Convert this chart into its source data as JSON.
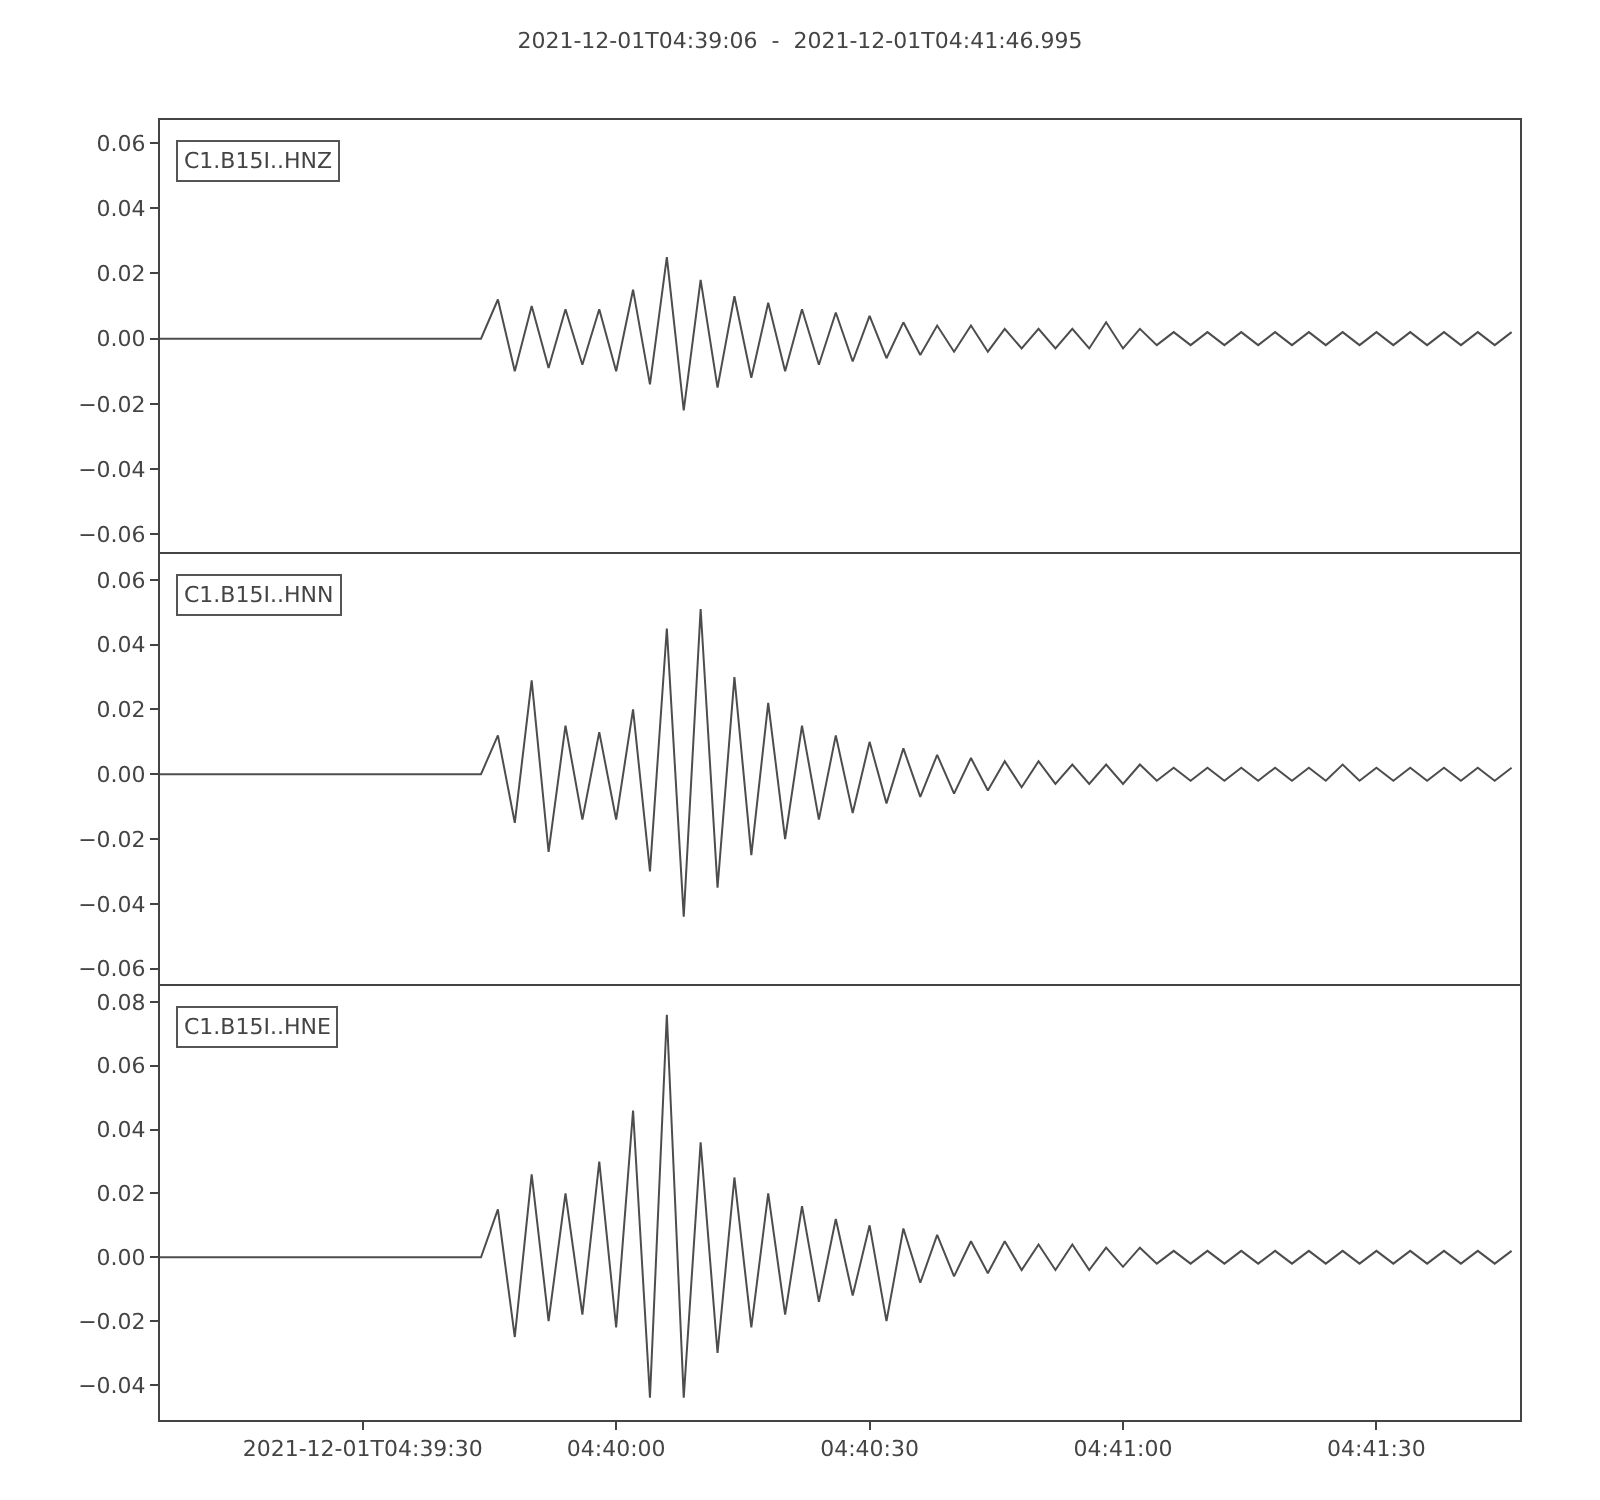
{
  "chart_data": [
    {
      "type": "line",
      "title": "2021-12-01T04:39:06  -  2021-12-01T04:41:46.995",
      "tick_labels": "y",
      "x": [
        "2021-12-01T04:39:06",
        "2021-12-01T04:39:44",
        "2021-12-01T04:39:46",
        "2021-12-01T04:39:48",
        "2021-12-01T04:39:50",
        "2021-12-01T04:39:52",
        "2021-12-01T04:39:54",
        "2021-12-01T04:39:56",
        "2021-12-01T04:39:58",
        "2021-12-01T04:40:00",
        "2021-12-01T04:40:02",
        "2021-12-01T04:40:04",
        "2021-12-01T04:40:06",
        "2021-12-01T04:40:08",
        "2021-12-01T04:40:10",
        "2021-12-01T04:40:12",
        "2021-12-01T04:40:14",
        "2021-12-01T04:40:16",
        "2021-12-01T04:40:18",
        "2021-12-01T04:40:20",
        "2021-12-01T04:40:22",
        "2021-12-01T04:40:24",
        "2021-12-01T04:40:26",
        "2021-12-01T04:40:28",
        "2021-12-01T04:40:30",
        "2021-12-01T04:40:32",
        "2021-12-01T04:40:34",
        "2021-12-01T04:40:36",
        "2021-12-01T04:40:38",
        "2021-12-01T04:40:40",
        "2021-12-01T04:40:42",
        "2021-12-01T04:40:44",
        "2021-12-01T04:40:46",
        "2021-12-01T04:40:48",
        "2021-12-01T04:40:50",
        "2021-12-01T04:40:52",
        "2021-12-01T04:40:54",
        "2021-12-01T04:40:56",
        "2021-12-01T04:40:58",
        "2021-12-01T04:41:00",
        "2021-12-01T04:41:02",
        "2021-12-01T04:41:04",
        "2021-12-01T04:41:06",
        "2021-12-01T04:41:08",
        "2021-12-01T04:41:10",
        "2021-12-01T04:41:12",
        "2021-12-01T04:41:14",
        "2021-12-01T04:41:16",
        "2021-12-01T04:41:18",
        "2021-12-01T04:41:20",
        "2021-12-01T04:41:22",
        "2021-12-01T04:41:24",
        "2021-12-01T04:41:26",
        "2021-12-01T04:41:28",
        "2021-12-01T04:41:30",
        "2021-12-01T04:41:32",
        "2021-12-01T04:41:34",
        "2021-12-01T04:41:36",
        "2021-12-01T04:41:38",
        "2021-12-01T04:41:40",
        "2021-12-01T04:41:42",
        "2021-12-01T04:41:44",
        "2021-12-01T04:41:46"
      ],
      "xlim": [
        "2021-12-01T04:39:06",
        "2021-12-01T04:41:46.995"
      ],
      "xticks": [
        {
          "value": "2021-12-01T04:39:30",
          "label": null
        },
        {
          "value": "2021-12-01T04:40:00",
          "label": null
        },
        {
          "value": "2021-12-01T04:40:30",
          "label": null
        },
        {
          "value": "2021-12-01T04:41:00",
          "label": null
        },
        {
          "value": "2021-12-01T04:41:30",
          "label": null
        }
      ],
      "ylim": [
        -0.066,
        0.067
      ],
      "yticks": [
        {
          "value": -0.06,
          "label": "−0.06"
        },
        {
          "value": -0.04,
          "label": "−0.04"
        },
        {
          "value": -0.02,
          "label": "−0.02"
        },
        {
          "value": 0,
          "label": "0.00"
        },
        {
          "value": 0.02,
          "label": "0.02"
        },
        {
          "value": 0.04,
          "label": "0.04"
        },
        {
          "value": 0.06,
          "label": "0.06"
        }
      ],
      "series": [
        {
          "name": "C1.B15I..HNZ",
          "color": "#4d4d4d",
          "values": [
            0,
            0,
            0.012,
            -0.01,
            0.01,
            -0.009,
            0.009,
            -0.008,
            0.009,
            -0.01,
            0.015,
            -0.014,
            0.025,
            -0.022,
            0.018,
            -0.015,
            0.013,
            -0.012,
            0.011,
            -0.01,
            0.009,
            -0.008,
            0.008,
            -0.007,
            0.007,
            -0.006,
            0.005,
            -0.005,
            0.004,
            -0.004,
            0.004,
            -0.004,
            0.003,
            -0.003,
            0.003,
            -0.003,
            0.003,
            -0.003,
            0.005,
            -0.003,
            0.003,
            -0.002,
            0.002,
            -0.002,
            0.002,
            -0.002,
            0.002,
            -0.002,
            0.002,
            -0.002,
            0.002,
            -0.002,
            0.002,
            -0.002,
            0.002,
            -0.002,
            0.002,
            -0.002,
            0.002,
            -0.002,
            0.002,
            -0.002,
            0.002
          ]
        }
      ]
    },
    {
      "type": "line",
      "tick_labels": "y",
      "x": [
        "2021-12-01T04:39:06",
        "2021-12-01T04:39:44",
        "2021-12-01T04:39:46",
        "2021-12-01T04:39:48",
        "2021-12-01T04:39:50",
        "2021-12-01T04:39:52",
        "2021-12-01T04:39:54",
        "2021-12-01T04:39:56",
        "2021-12-01T04:39:58",
        "2021-12-01T04:40:00",
        "2021-12-01T04:40:02",
        "2021-12-01T04:40:04",
        "2021-12-01T04:40:06",
        "2021-12-01T04:40:08",
        "2021-12-01T04:40:10",
        "2021-12-01T04:40:12",
        "2021-12-01T04:40:14",
        "2021-12-01T04:40:16",
        "2021-12-01T04:40:18",
        "2021-12-01T04:40:20",
        "2021-12-01T04:40:22",
        "2021-12-01T04:40:24",
        "2021-12-01T04:40:26",
        "2021-12-01T04:40:28",
        "2021-12-01T04:40:30",
        "2021-12-01T04:40:32",
        "2021-12-01T04:40:34",
        "2021-12-01T04:40:36",
        "2021-12-01T04:40:38",
        "2021-12-01T04:40:40",
        "2021-12-01T04:40:42",
        "2021-12-01T04:40:44",
        "2021-12-01T04:40:46",
        "2021-12-01T04:40:48",
        "2021-12-01T04:40:50",
        "2021-12-01T04:40:52",
        "2021-12-01T04:40:54",
        "2021-12-01T04:40:56",
        "2021-12-01T04:40:58",
        "2021-12-01T04:41:00",
        "2021-12-01T04:41:02",
        "2021-12-01T04:41:04",
        "2021-12-01T04:41:06",
        "2021-12-01T04:41:08",
        "2021-12-01T04:41:10",
        "2021-12-01T04:41:12",
        "2021-12-01T04:41:14",
        "2021-12-01T04:41:16",
        "2021-12-01T04:41:18",
        "2021-12-01T04:41:20",
        "2021-12-01T04:41:22",
        "2021-12-01T04:41:24",
        "2021-12-01T04:41:26",
        "2021-12-01T04:41:28",
        "2021-12-01T04:41:30",
        "2021-12-01T04:41:32",
        "2021-12-01T04:41:34",
        "2021-12-01T04:41:36",
        "2021-12-01T04:41:38",
        "2021-12-01T04:41:40",
        "2021-12-01T04:41:42",
        "2021-12-01T04:41:44",
        "2021-12-01T04:41:46"
      ],
      "xlim": [
        "2021-12-01T04:39:06",
        "2021-12-01T04:41:46.995"
      ],
      "xticks": [
        {
          "value": "2021-12-01T04:39:30",
          "label": null
        },
        {
          "value": "2021-12-01T04:40:00",
          "label": null
        },
        {
          "value": "2021-12-01T04:40:30",
          "label": null
        },
        {
          "value": "2021-12-01T04:41:00",
          "label": null
        },
        {
          "value": "2021-12-01T04:41:30",
          "label": null
        }
      ],
      "ylim": [
        -0.066,
        0.068
      ],
      "yticks": [
        {
          "value": -0.06,
          "label": "−0.06"
        },
        {
          "value": -0.04,
          "label": "−0.04"
        },
        {
          "value": -0.02,
          "label": "−0.02"
        },
        {
          "value": 0,
          "label": "0.00"
        },
        {
          "value": 0.02,
          "label": "0.02"
        },
        {
          "value": 0.04,
          "label": "0.04"
        },
        {
          "value": 0.06,
          "label": "0.06"
        }
      ],
      "series": [
        {
          "name": "C1.B15I..HNN",
          "color": "#4d4d4d",
          "values": [
            0,
            0,
            0.012,
            -0.015,
            0.029,
            -0.024,
            0.015,
            -0.014,
            0.013,
            -0.014,
            0.02,
            -0.03,
            0.045,
            -0.044,
            0.051,
            -0.035,
            0.03,
            -0.025,
            0.022,
            -0.02,
            0.015,
            -0.014,
            0.012,
            -0.012,
            0.01,
            -0.009,
            0.008,
            -0.007,
            0.006,
            -0.006,
            0.005,
            -0.005,
            0.004,
            -0.004,
            0.004,
            -0.003,
            0.003,
            -0.003,
            0.003,
            -0.003,
            0.003,
            -0.002,
            0.002,
            -0.002,
            0.002,
            -0.002,
            0.002,
            -0.002,
            0.002,
            -0.002,
            0.002,
            -0.002,
            0.003,
            -0.002,
            0.002,
            -0.002,
            0.002,
            -0.002,
            0.002,
            -0.002,
            0.002,
            -0.002,
            0.002
          ]
        }
      ]
    },
    {
      "type": "line",
      "x": [
        "2021-12-01T04:39:06",
        "2021-12-01T04:39:44",
        "2021-12-01T04:39:46",
        "2021-12-01T04:39:48",
        "2021-12-01T04:39:50",
        "2021-12-01T04:39:52",
        "2021-12-01T04:39:54",
        "2021-12-01T04:39:56",
        "2021-12-01T04:39:58",
        "2021-12-01T04:40:00",
        "2021-12-01T04:40:02",
        "2021-12-01T04:40:04",
        "2021-12-01T04:40:06",
        "2021-12-01T04:40:08",
        "2021-12-01T04:40:10",
        "2021-12-01T04:40:12",
        "2021-12-01T04:40:14",
        "2021-12-01T04:40:16",
        "2021-12-01T04:40:18",
        "2021-12-01T04:40:20",
        "2021-12-01T04:40:22",
        "2021-12-01T04:40:24",
        "2021-12-01T04:40:26",
        "2021-12-01T04:40:28",
        "2021-12-01T04:40:30",
        "2021-12-01T04:40:32",
        "2021-12-01T04:40:34",
        "2021-12-01T04:40:36",
        "2021-12-01T04:40:38",
        "2021-12-01T04:40:40",
        "2021-12-01T04:40:42",
        "2021-12-01T04:40:44",
        "2021-12-01T04:40:46",
        "2021-12-01T04:40:48",
        "2021-12-01T04:40:50",
        "2021-12-01T04:40:52",
        "2021-12-01T04:40:54",
        "2021-12-01T04:40:56",
        "2021-12-01T04:40:58",
        "2021-12-01T04:41:00",
        "2021-12-01T04:41:02",
        "2021-12-01T04:41:04",
        "2021-12-01T04:41:06",
        "2021-12-01T04:41:08",
        "2021-12-01T04:41:10",
        "2021-12-01T04:41:12",
        "2021-12-01T04:41:14",
        "2021-12-01T04:41:16",
        "2021-12-01T04:41:18",
        "2021-12-01T04:41:20",
        "2021-12-01T04:41:22",
        "2021-12-01T04:41:24",
        "2021-12-01T04:41:26",
        "2021-12-01T04:41:28",
        "2021-12-01T04:41:30",
        "2021-12-01T04:41:32",
        "2021-12-01T04:41:34",
        "2021-12-01T04:41:36",
        "2021-12-01T04:41:38",
        "2021-12-01T04:41:40",
        "2021-12-01T04:41:42",
        "2021-12-01T04:41:44",
        "2021-12-01T04:41:46"
      ],
      "xlim": [
        "2021-12-01T04:39:06",
        "2021-12-01T04:41:46.995"
      ],
      "xticks": [
        {
          "value": "2021-12-01T04:39:30",
          "label": "2021-12-01T04:39:30"
        },
        {
          "value": "2021-12-01T04:40:00",
          "label": "04:40:00"
        },
        {
          "value": "2021-12-01T04:40:30",
          "label": "04:40:30"
        },
        {
          "value": "2021-12-01T04:41:00",
          "label": "04:41:00"
        },
        {
          "value": "2021-12-01T04:41:30",
          "label": "04:41:30"
        }
      ],
      "ylim": [
        -0.051,
        0.085
      ],
      "yticks": [
        {
          "value": -0.04,
          "label": "−0.04"
        },
        {
          "value": -0.02,
          "label": "−0.02"
        },
        {
          "value": 0,
          "label": "0.00"
        },
        {
          "value": 0.02,
          "label": "0.02"
        },
        {
          "value": 0.04,
          "label": "0.04"
        },
        {
          "value": 0.06,
          "label": "0.06"
        },
        {
          "value": 0.08,
          "label": "0.08"
        }
      ],
      "series": [
        {
          "name": "C1.B15I..HNE",
          "color": "#4d4d4d",
          "values": [
            0,
            0,
            0.015,
            -0.025,
            0.026,
            -0.02,
            0.02,
            -0.018,
            0.03,
            -0.022,
            0.046,
            -0.044,
            0.076,
            -0.044,
            0.036,
            -0.03,
            0.025,
            -0.022,
            0.02,
            -0.018,
            0.016,
            -0.014,
            0.012,
            -0.012,
            0.01,
            -0.02,
            0.009,
            -0.008,
            0.007,
            -0.006,
            0.005,
            -0.005,
            0.005,
            -0.004,
            0.004,
            -0.004,
            0.004,
            -0.004,
            0.003,
            -0.003,
            0.003,
            -0.002,
            0.002,
            -0.002,
            0.002,
            -0.002,
            0.002,
            -0.002,
            0.002,
            -0.002,
            0.002,
            -0.002,
            0.002,
            -0.002,
            0.002,
            -0.002,
            0.002,
            -0.002,
            0.002,
            -0.002,
            0.002,
            -0.002,
            0.002
          ]
        }
      ]
    }
  ]
}
